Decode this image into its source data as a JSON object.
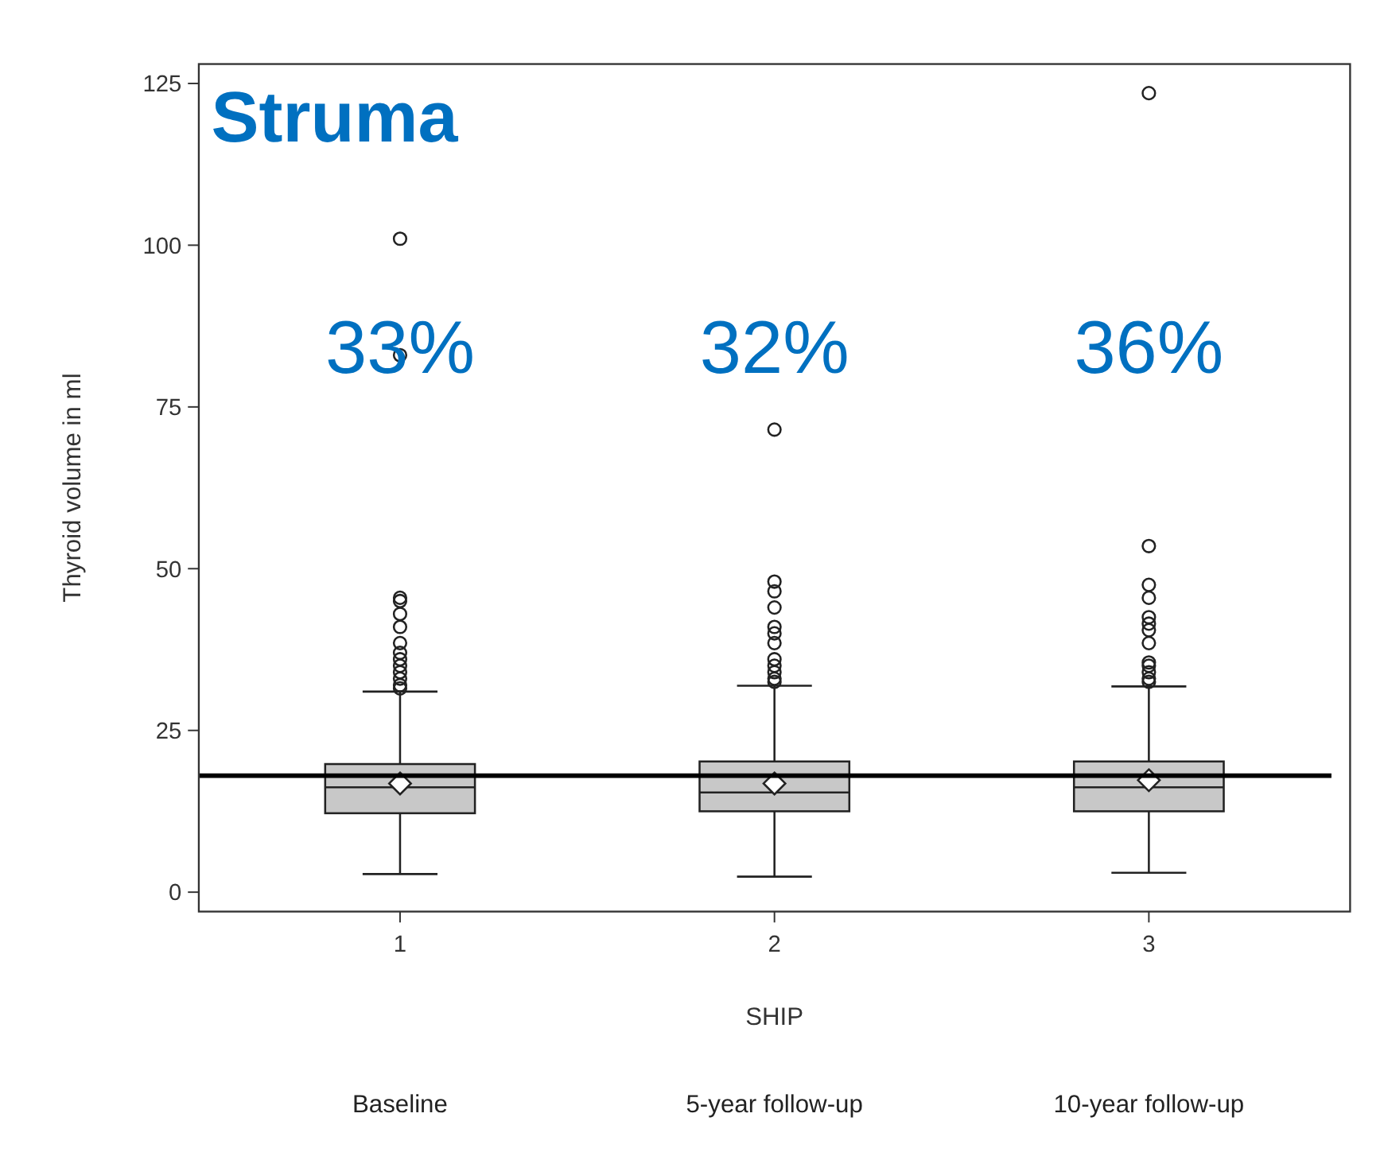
{
  "chart_data": {
    "type": "box",
    "title": "Struma",
    "xlabel": "SHIP",
    "ylabel": "Thyroid volume in ml",
    "categories": [
      "1",
      "2",
      "3"
    ],
    "boxes": [
      {
        "low": 2.8,
        "q1": 12.2,
        "median": 16.2,
        "q3": 19.8,
        "high": 31.0,
        "mean": 16.8,
        "outliers": [
          101,
          83,
          45.5,
          45,
          43,
          41,
          38.5,
          37,
          36,
          35,
          34,
          33,
          32,
          31.5
        ]
      },
      {
        "low": 2.4,
        "q1": 12.5,
        "median": 15.4,
        "q3": 20.2,
        "high": 31.9,
        "mean": 16.8,
        "outliers": [
          71.5,
          48,
          46.5,
          44,
          41,
          40,
          38.5,
          36,
          35,
          34,
          33,
          32.5
        ]
      },
      {
        "low": 3.0,
        "q1": 12.5,
        "median": 16.2,
        "q3": 20.2,
        "high": 31.8,
        "mean": 17.3,
        "outliers": [
          123.5,
          53.5,
          47.5,
          45.5,
          42.5,
          41.5,
          40.5,
          38.5,
          35.5,
          35,
          34,
          33,
          32.5
        ]
      }
    ],
    "color": "#c8c8c8",
    "ylim": [
      -3,
      128
    ],
    "yticks": [
      0,
      25,
      50,
      75,
      100,
      125
    ],
    "grid": false,
    "ref_lines": [
      {
        "axis": "y",
        "value": 18,
        "color": "#000000"
      }
    ],
    "annotations": [
      "33%",
      "32%",
      "36%",
      "Baseline",
      "5-year follow-up",
      "10-year follow-up"
    ]
  }
}
